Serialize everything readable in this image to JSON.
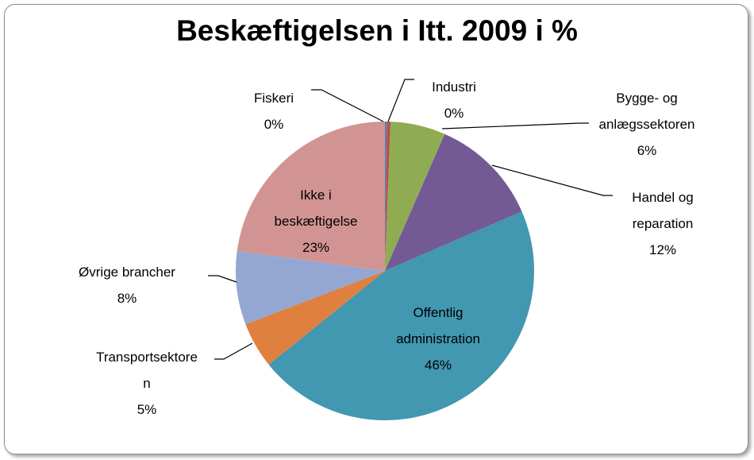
{
  "chart_data": {
    "type": "pie",
    "title": "Beskæftigelsen i Itt. 2009 i %",
    "categories": [
      "Fiskeri",
      "Industri",
      "Bygge- og anlægssektoren",
      "Handel og reparation",
      "Offentlig administration",
      "Transportsektoren",
      "Øvrige brancher",
      "Ikke i beskæftigelse"
    ],
    "values": [
      0.2,
      0.4,
      6,
      12,
      46,
      5,
      8,
      23
    ],
    "value_labels": [
      "0%",
      "0%",
      "6%",
      "12%",
      "46%",
      "5%",
      "8%",
      "23%"
    ],
    "colors": [
      "#4f81bd",
      "#b8504c",
      "#8fac52",
      "#735a95",
      "#4198b0",
      "#e0803f",
      "#93a7d2",
      "#d29492"
    ]
  }
}
